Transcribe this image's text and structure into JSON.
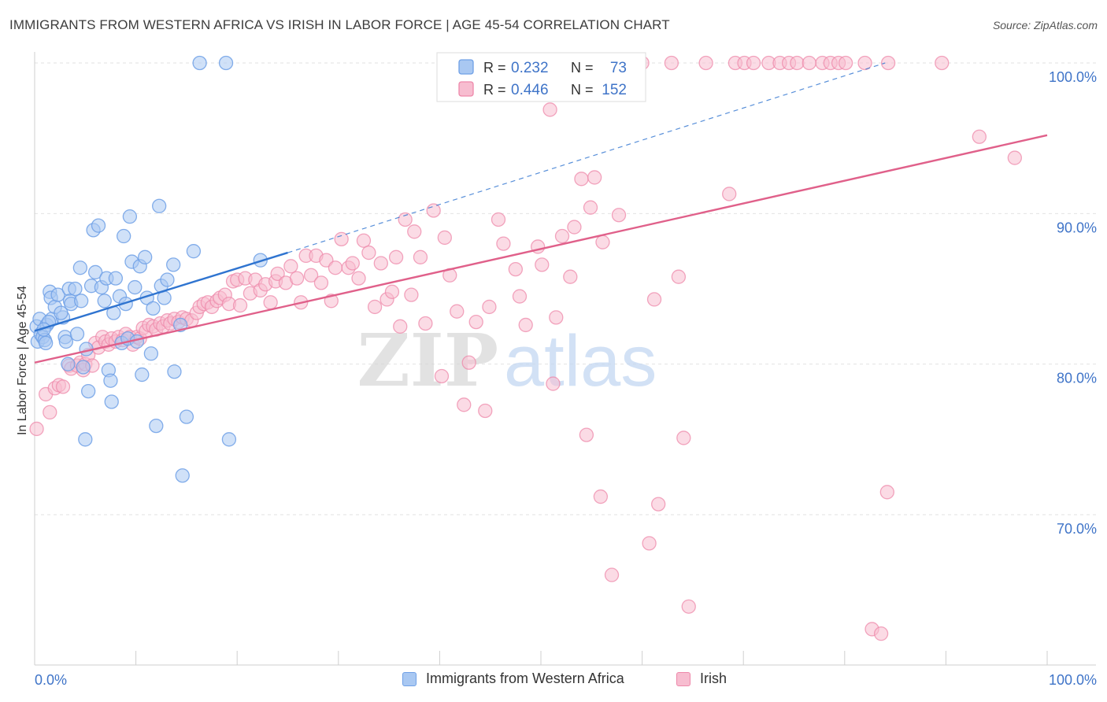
{
  "header": {
    "title": "IMMIGRANTS FROM WESTERN AFRICA VS IRISH IN LABOR FORCE | AGE 45-54 CORRELATION CHART",
    "source": "Source: ZipAtlas.com"
  },
  "watermark": {
    "part1": "ZIP",
    "part2": "atlas"
  },
  "colors": {
    "blue": "#6fa0e6",
    "blue_fill": "#a9c8f2",
    "blue_line": "#2f74d0",
    "pink": "#ee88aa",
    "pink_fill": "#f7bdd0",
    "pink_line": "#e0608a",
    "axis_text": "#3f74c8"
  },
  "chart_data": {
    "type": "scatter",
    "title": "IMMIGRANTS FROM WESTERN AFRICA VS IRISH IN LABOR FORCE | AGE 45-54 CORRELATION CHART",
    "xlabel": "",
    "ylabel": "In Labor Force | Age 45-54",
    "xlim": [
      0,
      100
    ],
    "ylim": [
      60.5,
      101.8
    ],
    "x_tick_labels": [
      "0.0%",
      "100.0%"
    ],
    "y_ticks": [
      70,
      80,
      90,
      100
    ],
    "y_tick_labels": [
      "70.0%",
      "80.0%",
      "90.0%",
      "100.0%"
    ],
    "grid": true,
    "legend_top": [
      {
        "r_label": "R =",
        "r_value": "0.232",
        "n_label": "N =",
        "n_value": "73"
      },
      {
        "r_label": "R =",
        "r_value": "0.446",
        "n_label": "N =",
        "n_value": "152"
      }
    ],
    "series": [
      {
        "name": "Immigrants from Western Africa",
        "color": "#6fa0e6",
        "trend": {
          "x": [
            0,
            25
          ],
          "y": [
            82.2,
            87.4
          ],
          "dashed_extension": {
            "x": [
              25,
              84
            ],
            "y": [
              87.4,
              100
            ]
          }
        },
        "points": [
          [
            0.2,
            82.5
          ],
          [
            0.3,
            81.5
          ],
          [
            0.5,
            83.0
          ],
          [
            0.6,
            82.0
          ],
          [
            0.8,
            81.8
          ],
          [
            1.0,
            81.6
          ],
          [
            1.2,
            82.6
          ],
          [
            1.5,
            84.8
          ],
          [
            1.6,
            84.4
          ],
          [
            1.7,
            83.0
          ],
          [
            2.0,
            83.8
          ],
          [
            2.3,
            84.6
          ],
          [
            2.8,
            83.1
          ],
          [
            3.0,
            81.8
          ],
          [
            3.1,
            81.5
          ],
          [
            3.3,
            80.0
          ],
          [
            3.4,
            85.0
          ],
          [
            3.5,
            84.2
          ],
          [
            3.6,
            84.0
          ],
          [
            4.0,
            85.0
          ],
          [
            4.2,
            82.0
          ],
          [
            4.5,
            86.4
          ],
          [
            4.8,
            79.8
          ],
          [
            5.0,
            75.0
          ],
          [
            5.1,
            81.0
          ],
          [
            5.3,
            78.2
          ],
          [
            5.6,
            85.2
          ],
          [
            5.8,
            88.9
          ],
          [
            6.0,
            86.1
          ],
          [
            6.3,
            89.2
          ],
          [
            6.6,
            85.1
          ],
          [
            6.9,
            84.2
          ],
          [
            7.1,
            85.7
          ],
          [
            7.3,
            79.6
          ],
          [
            7.5,
            78.9
          ],
          [
            7.6,
            77.5
          ],
          [
            7.8,
            83.4
          ],
          [
            8.0,
            85.7
          ],
          [
            8.4,
            84.5
          ],
          [
            8.6,
            81.4
          ],
          [
            8.8,
            88.5
          ],
          [
            9.0,
            84.0
          ],
          [
            9.2,
            81.7
          ],
          [
            9.4,
            89.8
          ],
          [
            9.6,
            86.8
          ],
          [
            9.9,
            85.1
          ],
          [
            10.1,
            81.5
          ],
          [
            10.4,
            86.5
          ],
          [
            10.6,
            79.3
          ],
          [
            10.9,
            87.1
          ],
          [
            11.1,
            84.4
          ],
          [
            11.5,
            80.7
          ],
          [
            11.7,
            83.7
          ],
          [
            12.0,
            75.9
          ],
          [
            12.3,
            90.5
          ],
          [
            12.5,
            85.2
          ],
          [
            12.8,
            84.4
          ],
          [
            13.1,
            85.6
          ],
          [
            13.7,
            86.6
          ],
          [
            13.8,
            79.5
          ],
          [
            14.4,
            82.6
          ],
          [
            14.6,
            72.6
          ],
          [
            15.0,
            76.5
          ],
          [
            15.7,
            87.5
          ],
          [
            16.3,
            100
          ],
          [
            18.9,
            100
          ],
          [
            19.2,
            75.0
          ],
          [
            22.3,
            86.9
          ],
          [
            1.4,
            82.8
          ],
          [
            2.6,
            83.4
          ],
          [
            0.9,
            82.3
          ],
          [
            1.1,
            81.4
          ],
          [
            4.6,
            84.2
          ]
        ]
      },
      {
        "name": "Irish",
        "color": "#ee88aa",
        "trend": {
          "x": [
            0,
            100
          ],
          "y": [
            80.1,
            95.2
          ]
        },
        "points": [
          [
            0.2,
            75.7
          ],
          [
            1.1,
            78.0
          ],
          [
            1.5,
            76.8
          ],
          [
            2.0,
            78.4
          ],
          [
            2.4,
            78.6
          ],
          [
            2.8,
            78.5
          ],
          [
            3.4,
            79.9
          ],
          [
            3.6,
            79.7
          ],
          [
            4.2,
            79.9
          ],
          [
            4.5,
            80.1
          ],
          [
            4.8,
            79.6
          ],
          [
            5.0,
            80.0
          ],
          [
            5.3,
            80.6
          ],
          [
            5.7,
            79.9
          ],
          [
            6.0,
            81.4
          ],
          [
            6.3,
            81.1
          ],
          [
            6.7,
            81.8
          ],
          [
            7.0,
            81.5
          ],
          [
            7.3,
            81.3
          ],
          [
            7.6,
            81.7
          ],
          [
            8.0,
            81.5
          ],
          [
            8.3,
            81.8
          ],
          [
            8.7,
            81.6
          ],
          [
            9.0,
            82.0
          ],
          [
            9.4,
            81.8
          ],
          [
            9.7,
            81.3
          ],
          [
            10.1,
            81.8
          ],
          [
            10.4,
            81.7
          ],
          [
            10.7,
            82.4
          ],
          [
            11.0,
            82.2
          ],
          [
            11.3,
            82.6
          ],
          [
            11.7,
            82.5
          ],
          [
            12.0,
            82.3
          ],
          [
            12.4,
            82.7
          ],
          [
            12.7,
            82.5
          ],
          [
            13.1,
            82.9
          ],
          [
            13.4,
            82.7
          ],
          [
            13.8,
            83.0
          ],
          [
            14.2,
            82.8
          ],
          [
            14.6,
            83.1
          ],
          [
            15.0,
            83.0
          ],
          [
            15.5,
            82.9
          ],
          [
            16.0,
            83.4
          ],
          [
            16.3,
            83.8
          ],
          [
            16.7,
            84.0
          ],
          [
            17.1,
            84.1
          ],
          [
            17.5,
            83.8
          ],
          [
            18.0,
            84.2
          ],
          [
            18.3,
            84.4
          ],
          [
            18.8,
            84.6
          ],
          [
            19.2,
            84.0
          ],
          [
            19.6,
            85.5
          ],
          [
            20.0,
            85.6
          ],
          [
            20.3,
            83.9
          ],
          [
            20.8,
            85.7
          ],
          [
            21.3,
            84.7
          ],
          [
            21.8,
            85.6
          ],
          [
            22.3,
            84.9
          ],
          [
            22.8,
            85.3
          ],
          [
            23.3,
            84.1
          ],
          [
            23.8,
            85.5
          ],
          [
            24.0,
            86.0
          ],
          [
            24.8,
            85.4
          ],
          [
            25.3,
            86.5
          ],
          [
            25.9,
            85.7
          ],
          [
            26.3,
            84.1
          ],
          [
            26.8,
            87.2
          ],
          [
            27.3,
            85.9
          ],
          [
            27.8,
            87.2
          ],
          [
            28.3,
            85.4
          ],
          [
            28.8,
            86.9
          ],
          [
            29.3,
            84.2
          ],
          [
            29.7,
            86.4
          ],
          [
            30.3,
            88.3
          ],
          [
            31.0,
            86.4
          ],
          [
            31.4,
            86.7
          ],
          [
            32.0,
            85.7
          ],
          [
            32.5,
            88.2
          ],
          [
            33.0,
            87.4
          ],
          [
            33.6,
            83.8
          ],
          [
            34.2,
            86.7
          ],
          [
            34.8,
            84.3
          ],
          [
            35.3,
            84.8
          ],
          [
            35.7,
            87.1
          ],
          [
            36.1,
            82.5
          ],
          [
            36.6,
            89.6
          ],
          [
            37.2,
            84.6
          ],
          [
            37.5,
            88.8
          ],
          [
            38.1,
            87.1
          ],
          [
            38.6,
            82.7
          ],
          [
            39.4,
            90.2
          ],
          [
            40.2,
            79.2
          ],
          [
            40.5,
            88.4
          ],
          [
            41.0,
            85.9
          ],
          [
            41.7,
            83.5
          ],
          [
            42.4,
            77.3
          ],
          [
            42.9,
            80.1
          ],
          [
            43.6,
            82.8
          ],
          [
            44.5,
            76.9
          ],
          [
            44.9,
            83.8
          ],
          [
            45.8,
            89.6
          ],
          [
            46.3,
            88.0
          ],
          [
            47.5,
            86.3
          ],
          [
            47.9,
            84.5
          ],
          [
            48.5,
            82.6
          ],
          [
            49.7,
            87.8
          ],
          [
            50.1,
            86.6
          ],
          [
            50.9,
            96.9
          ],
          [
            51.2,
            78.7
          ],
          [
            51.5,
            83.1
          ],
          [
            52.1,
            88.5
          ],
          [
            52.9,
            85.8
          ],
          [
            53.3,
            89.1
          ],
          [
            54.0,
            92.3
          ],
          [
            54.5,
            75.3
          ],
          [
            54.9,
            90.4
          ],
          [
            55.3,
            92.4
          ],
          [
            55.9,
            71.2
          ],
          [
            56.1,
            88.1
          ],
          [
            57.0,
            66.0
          ],
          [
            57.7,
            89.9
          ],
          [
            59.2,
            100
          ],
          [
            60.0,
            100
          ],
          [
            60.7,
            68.1
          ],
          [
            61.2,
            84.3
          ],
          [
            61.6,
            70.7
          ],
          [
            62.9,
            100
          ],
          [
            63.6,
            85.8
          ],
          [
            64.1,
            75.1
          ],
          [
            64.6,
            63.9
          ],
          [
            66.3,
            100
          ],
          [
            68.6,
            91.3
          ],
          [
            69.2,
            100
          ],
          [
            70.1,
            100
          ],
          [
            71.0,
            100
          ],
          [
            72.5,
            100
          ],
          [
            73.6,
            100
          ],
          [
            74.5,
            100
          ],
          [
            75.3,
            100
          ],
          [
            76.5,
            100
          ],
          [
            77.8,
            100
          ],
          [
            78.6,
            100
          ],
          [
            79.4,
            100
          ],
          [
            80.1,
            100
          ],
          [
            82.0,
            100
          ],
          [
            84.3,
            100
          ],
          [
            89.6,
            100
          ],
          [
            93.3,
            95.1
          ],
          [
            96.8,
            93.7
          ],
          [
            82.7,
            62.4
          ],
          [
            83.6,
            62.1
          ],
          [
            84.2,
            71.5
          ]
        ]
      }
    ]
  },
  "legend_bottom": [
    {
      "label": "Immigrants from Western Africa"
    },
    {
      "label": "Irish"
    }
  ]
}
